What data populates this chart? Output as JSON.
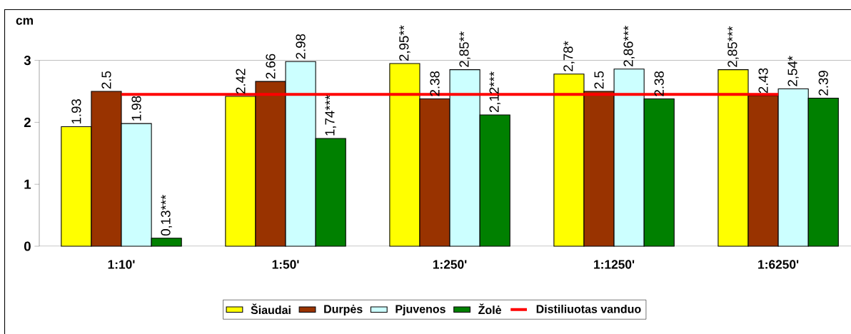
{
  "chart_data": {
    "type": "bar",
    "ylabel": "cm",
    "categories": [
      "1:10'",
      "1:50'",
      "1:250'",
      "1:1250'",
      "1:6250'"
    ],
    "ylim": [
      0,
      3
    ],
    "yticks": [
      0,
      1,
      2,
      3
    ],
    "legend": "bottom",
    "series": [
      {
        "name": "Šiaudai",
        "color": "#ffff00",
        "values": [
          1.93,
          2.42,
          2.95,
          2.78,
          2.85
        ],
        "value_labels": [
          "1.93",
          "2.42",
          "2,95**",
          "2,78*",
          "2,85***"
        ]
      },
      {
        "name": "Durpės",
        "color": "#993300",
        "values": [
          2.5,
          2.66,
          2.38,
          2.5,
          2.43
        ],
        "value_labels": [
          "2.5",
          "2.66",
          "2.38",
          "2.5",
          "2.43"
        ]
      },
      {
        "name": "Pjuvenos",
        "color": "#ccffff",
        "values": [
          1.98,
          2.98,
          2.85,
          2.86,
          2.54
        ],
        "value_labels": [
          "1.98",
          "2.98",
          "2,85**",
          "2,86***",
          "2,54*"
        ]
      },
      {
        "name": "Žolė",
        "color": "#008000",
        "values": [
          0.13,
          1.74,
          2.12,
          2.38,
          2.39
        ],
        "value_labels": [
          "0,13***",
          "1,74***",
          "2,12***",
          "2.38",
          "2.39"
        ]
      },
      {
        "name": "Distiliuotas vanduo",
        "type": "line",
        "color": "#ff0000",
        "values": [
          2.45,
          2.45,
          2.45,
          2.45,
          2.45
        ]
      }
    ]
  }
}
